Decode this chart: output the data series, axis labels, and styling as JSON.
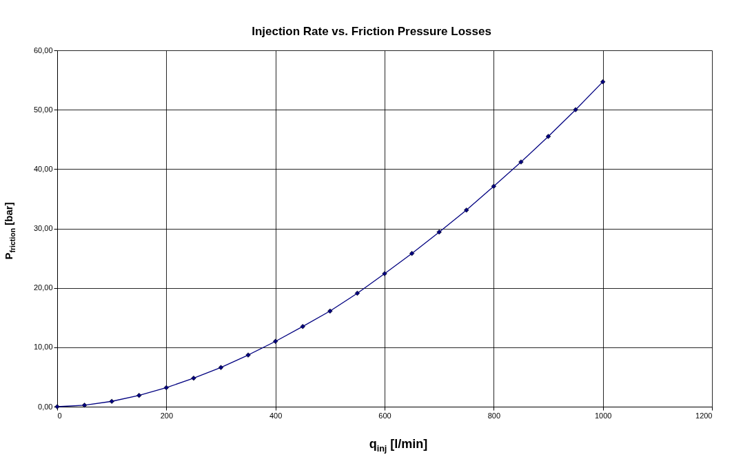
{
  "chart_data": {
    "type": "line",
    "title": "Injection Rate vs. Friction Pressure Losses",
    "xlabel": "q$_{inj}$ [l/min]",
    "ylabel": "P$_{friction}$ [bar]",
    "x": [
      0,
      50,
      100,
      150,
      200,
      250,
      300,
      350,
      400,
      450,
      500,
      550,
      600,
      650,
      700,
      750,
      800,
      850,
      900,
      950,
      1000
    ],
    "series": [
      {
        "color": "#000080",
        "values": [
          0,
          0.25,
          0.9,
          1.9,
          3.2,
          4.8,
          6.6,
          8.7,
          11.0,
          13.5,
          16.1,
          19.1,
          22.4,
          25.8,
          29.4,
          33.1,
          37.1,
          41.2,
          45.5,
          50.0,
          54.7
        ]
      }
    ],
    "xlim": [
      0,
      1200
    ],
    "xticks": [
      0,
      200,
      400,
      600,
      800,
      1000,
      1200
    ],
    "ylim": [
      0,
      60
    ],
    "yticks": [
      {
        "value": 0,
        "label": "0,00"
      },
      {
        "value": 10,
        "label": "10,00"
      },
      {
        "value": 20,
        "label": "20,00"
      },
      {
        "value": 30,
        "label": "30,00"
      },
      {
        "value": 40,
        "label": "40,00"
      },
      {
        "value": 50,
        "label": "50,00"
      },
      {
        "value": 60,
        "label": "60,00"
      }
    ],
    "grid": true,
    "marker": "diamond",
    "line_style": "solid"
  }
}
